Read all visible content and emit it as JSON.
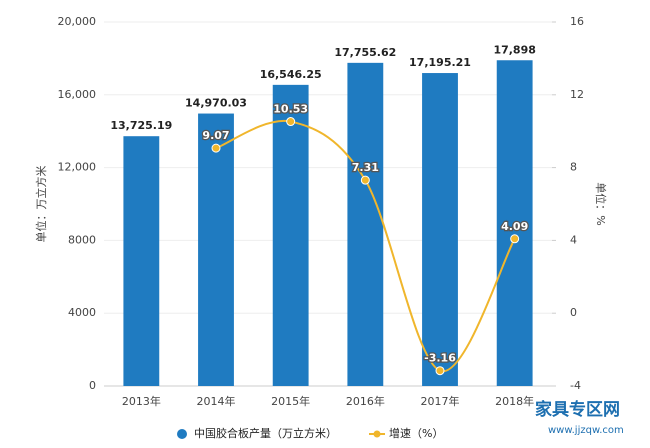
{
  "chart_data": {
    "type": "bar-line",
    "categories": [
      "2013年",
      "2014年",
      "2015年",
      "2016年",
      "2017年",
      "2018年"
    ],
    "series": [
      {
        "name": "中国胶合板产量（万立方米）",
        "color": "#1f7bc1",
        "type": "bar",
        "values": [
          13725.19,
          14970.03,
          16546.25,
          17755.62,
          17195.21,
          17898
        ],
        "value_labels": [
          "13,725.19",
          "14,970.03",
          "16,546.25",
          "17,755.62",
          "17,195.21",
          "17,898"
        ]
      },
      {
        "name": "增速（%）",
        "color": "#f0b62c",
        "type": "line",
        "axis": "y2",
        "values": [
          null,
          9.07,
          10.53,
          7.31,
          -3.16,
          4.09
        ]
      }
    ],
    "ylabel": "单位：万立方米",
    "y2label": "单位：%",
    "ylim": [
      0,
      20000
    ],
    "yticks": [
      0,
      4000,
      8000,
      {
        "value": 12000,
        "label": "12,000"
      },
      {
        "value": 16000,
        "label": "16,000"
      },
      {
        "value": 20000,
        "label": "20,000"
      }
    ],
    "y2lim": [
      -4,
      16
    ],
    "y2ticks": [
      -4,
      0,
      4,
      8,
      12,
      16
    ],
    "watermark": "家具专区网",
    "watermark_url": "www.jjzqw.com"
  }
}
